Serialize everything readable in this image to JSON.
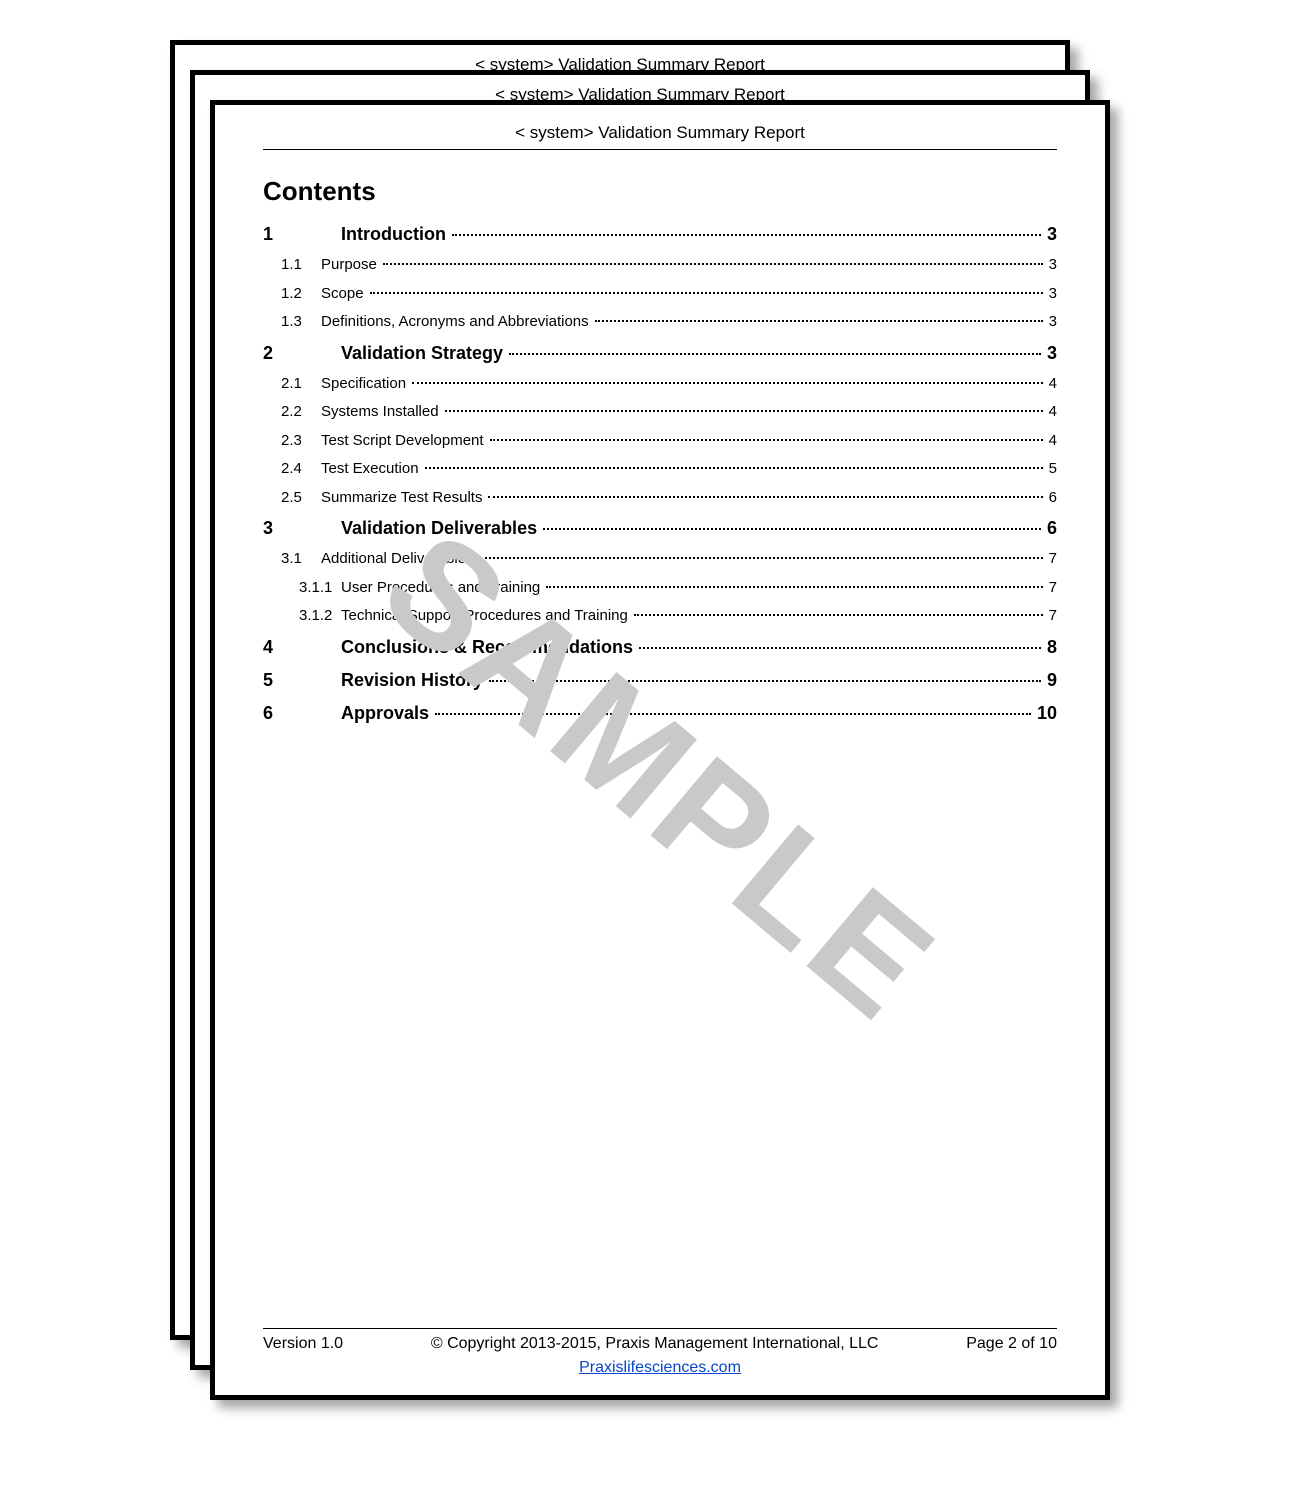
{
  "header": {
    "title": "< system> Validation Summary Report"
  },
  "watermark": "SAMPLE",
  "contents_heading": "Contents",
  "toc": [
    {
      "level": 1,
      "num": "1",
      "title": "Introduction",
      "page": "3"
    },
    {
      "level": 2,
      "num": "1.1",
      "title": "Purpose",
      "page": "3"
    },
    {
      "level": 2,
      "num": "1.2",
      "title": "Scope",
      "page": "3"
    },
    {
      "level": 2,
      "num": "1.3",
      "title": "Definitions, Acronyms and Abbreviations",
      "page": "3"
    },
    {
      "level": 1,
      "num": "2",
      "title": "Validation Strategy",
      "page": "3"
    },
    {
      "level": 2,
      "num": "2.1",
      "title": "Specification",
      "page": "4"
    },
    {
      "level": 2,
      "num": "2.2",
      "title": "Systems Installed",
      "page": "4"
    },
    {
      "level": 2,
      "num": "2.3",
      "title": "Test Script Development",
      "page": "4"
    },
    {
      "level": 2,
      "num": "2.4",
      "title": "Test Execution",
      "page": "5"
    },
    {
      "level": 2,
      "num": "2.5",
      "title": "Summarize Test Results",
      "page": "6"
    },
    {
      "level": 1,
      "num": "3",
      "title": "Validation Deliverables",
      "page": "6"
    },
    {
      "level": 2,
      "num": "3.1",
      "title": "Additional Deliverables",
      "page": "7"
    },
    {
      "level": 3,
      "num": "3.1.1",
      "title": "User Procedures and Training",
      "page": "7"
    },
    {
      "level": 3,
      "num": "3.1.2",
      "title": "Technical Support Procedures and Training",
      "page": "7"
    },
    {
      "level": 1,
      "num": "4",
      "title": "Conclusions & Recommendations",
      "page": "8"
    },
    {
      "level": 1,
      "num": "5",
      "title": "Revision History",
      "page": "9"
    },
    {
      "level": 1,
      "num": "6",
      "title": "Approvals",
      "page": "10"
    }
  ],
  "footer": {
    "version": "Version 1.0",
    "copyright": "© Copyright 2013-2015, Praxis Management International, LLC",
    "page": "Page 2 of 10",
    "link_text": "Praxislifesciences.com"
  },
  "style": {
    "page_border_color": "#000000",
    "page_bg": "#ffffff",
    "shadow": "rgba(0,0,0,0.35)",
    "watermark_color": "#c9c9c9",
    "link_color": "#0645cc",
    "heading_fontsize_pt": 20,
    "toc_l1_fontsize_pt": 13.5,
    "toc_body_fontsize_pt": 11.5,
    "watermark_fontsize_pt": 112,
    "watermark_rotation_deg": 40
  }
}
